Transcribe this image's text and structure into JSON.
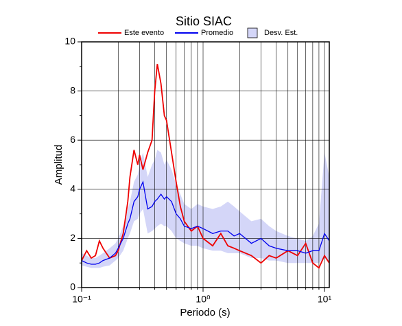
{
  "chart_data": {
    "type": "line",
    "title": "Sitio SIAC",
    "x_label": "Periodo (s)",
    "y_label": "Amplitud",
    "x_scale": "log",
    "grid": true,
    "xlim": [
      0.1,
      10.95
    ],
    "ylim": [
      0,
      10
    ],
    "xticks": [
      {
        "value": 0.1,
        "label": "10⁻¹"
      },
      {
        "value": 1,
        "label": "10⁰"
      },
      {
        "value": 10,
        "label": "10¹"
      }
    ],
    "x_minor_ticks": [
      0.2,
      0.3,
      0.4,
      0.5,
      0.6,
      0.7,
      0.8,
      0.9,
      2,
      3,
      4,
      5,
      6,
      7,
      8,
      9
    ],
    "yticks": [
      0,
      2,
      4,
      6,
      8,
      10
    ],
    "y_minor_ticks": [
      1,
      3,
      5,
      7,
      9
    ],
    "x": [
      0.1,
      0.11,
      0.12,
      0.13,
      0.14,
      0.15,
      0.17,
      0.19,
      0.2,
      0.22,
      0.24,
      0.25,
      0.27,
      0.29,
      0.3,
      0.32,
      0.35,
      0.38,
      0.4,
      0.42,
      0.45,
      0.48,
      0.5,
      0.55,
      0.6,
      0.65,
      0.7,
      0.8,
      0.9,
      1.0,
      1.2,
      1.4,
      1.6,
      1.8,
      2,
      2.5,
      3,
      3.5,
      4,
      5,
      6,
      7,
      8,
      9,
      10,
      10.95
    ],
    "series": [
      {
        "name": "Este evento",
        "color": "#ee0000",
        "values": [
          1.1,
          1.5,
          1.2,
          1.3,
          1.9,
          1.6,
          1.2,
          1.3,
          1.5,
          2.2,
          3.5,
          4.5,
          5.6,
          5.0,
          5.4,
          4.8,
          5.5,
          6.0,
          8.0,
          9.1,
          8.3,
          7.0,
          6.8,
          5.5,
          4.3,
          3.3,
          2.7,
          2.3,
          2.5,
          2.0,
          1.7,
          2.2,
          1.7,
          1.6,
          1.5,
          1.3,
          1.0,
          1.3,
          1.2,
          1.5,
          1.3,
          1.8,
          1.0,
          0.8,
          1.3,
          1.0
        ]
      },
      {
        "name": "Promedio",
        "color": "#0000ee",
        "values": [
          1.1,
          1.0,
          0.95,
          0.95,
          1.0,
          1.1,
          1.2,
          1.4,
          1.6,
          2.0,
          2.6,
          2.8,
          3.5,
          3.7,
          4.0,
          4.3,
          3.2,
          3.3,
          3.5,
          3.6,
          3.8,
          3.6,
          3.7,
          3.5,
          3.0,
          2.8,
          2.5,
          2.4,
          2.5,
          2.4,
          2.2,
          2.3,
          2.3,
          2.1,
          2.2,
          1.8,
          2.0,
          1.7,
          1.6,
          1.5,
          1.5,
          1.4,
          1.5,
          1.5,
          2.2,
          1.9
        ]
      }
    ],
    "band": {
      "name": "Desv. Est.",
      "color": "#d4d6f8",
      "upper": [
        1.4,
        1.3,
        1.2,
        1.2,
        1.3,
        1.4,
        1.6,
        1.8,
        2.0,
        2.5,
        3.2,
        3.5,
        4.3,
        4.6,
        5.0,
        5.5,
        4.5,
        5.0,
        5.2,
        5.6,
        5.5,
        5.0,
        5.2,
        4.8,
        4.2,
        3.8,
        3.4,
        3.2,
        3.4,
        3.3,
        3.2,
        3.3,
        3.5,
        3.3,
        3.1,
        2.7,
        2.8,
        2.5,
        2.3,
        2.1,
        2.0,
        1.9,
        2.1,
        2.6,
        5.5,
        4.5
      ],
      "lower": [
        0.9,
        0.85,
        0.8,
        0.8,
        0.8,
        0.85,
        0.9,
        1.1,
        1.2,
        1.5,
        2.0,
        2.2,
        2.7,
        2.8,
        3.0,
        3.2,
        2.2,
        2.3,
        2.4,
        2.5,
        2.6,
        2.5,
        2.5,
        2.3,
        2.0,
        1.9,
        1.8,
        1.7,
        1.7,
        1.6,
        1.5,
        1.5,
        1.4,
        1.4,
        1.4,
        1.2,
        1.2,
        1.1,
        1.1,
        1.0,
        1.0,
        1.0,
        1.0,
        1.0,
        1.2,
        1.0
      ]
    }
  }
}
